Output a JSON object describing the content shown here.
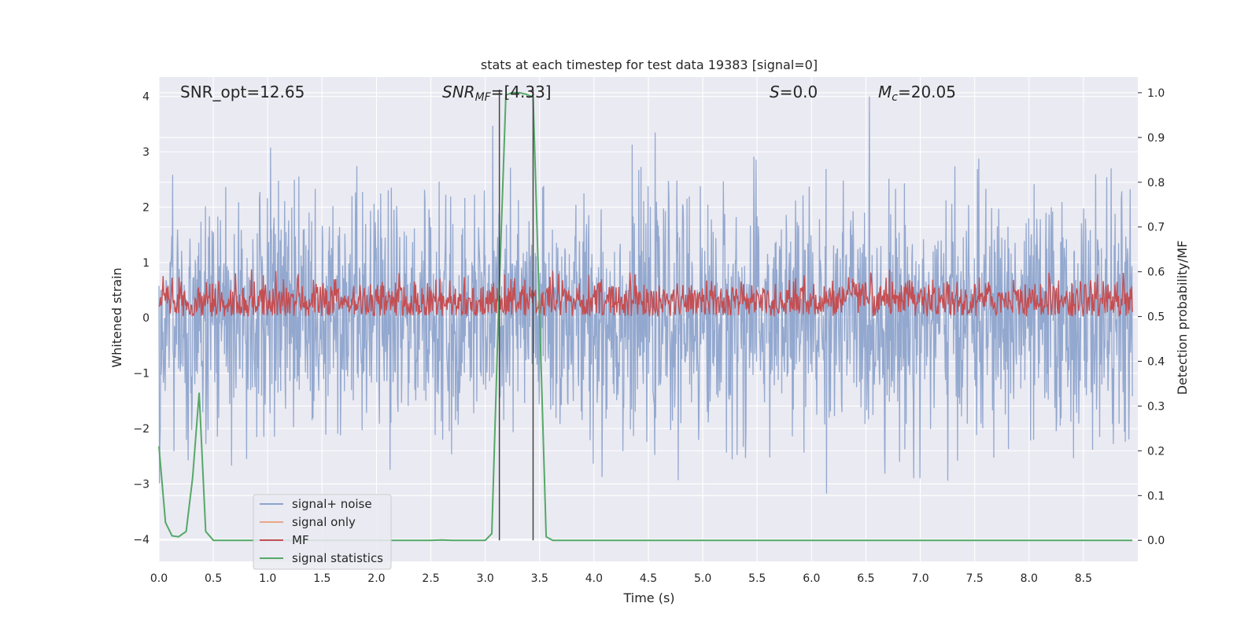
{
  "chart_data": {
    "type": "line",
    "title": "stats at each timestep for test data 19383 [signal=0]",
    "xlabel": "Time (s)",
    "ylabel": "Whitened strain",
    "y2label": "Detection probability/MF",
    "xlim": [
      0.0,
      9.0
    ],
    "ylim": [
      -4.4,
      4.35
    ],
    "y2lim": [
      -0.047,
      1.035
    ],
    "xticks": [
      "0.0",
      "0.5",
      "1.0",
      "1.5",
      "2.0",
      "2.5",
      "3.0",
      "3.5",
      "4.0",
      "4.5",
      "5.0",
      "5.5",
      "6.0",
      "6.5",
      "7.0",
      "7.5",
      "8.0",
      "8.5"
    ],
    "yticks": [
      "−4",
      "−3",
      "−2",
      "−1",
      "0",
      "1",
      "2",
      "3",
      "4"
    ],
    "y2ticks": [
      "0.0",
      "0.1",
      "0.2",
      "0.3",
      "0.4",
      "0.5",
      "0.6",
      "0.7",
      "0.8",
      "0.9",
      "1.0"
    ],
    "grid": true,
    "legend_position": "lower-left",
    "annotations": {
      "snr_opt": "SNR_opt=12.65",
      "snr_mf_main": "SNR",
      "snr_mf_sub": "MF",
      "snr_mf_rest": "=[4.33]",
      "s_main": "S",
      "s_rest": "=0.0",
      "mc_main": "M",
      "mc_sub": "c",
      "mc_rest": "=20.05"
    },
    "vertical_lines_x": [
      3.13,
      3.44
    ],
    "series": [
      {
        "name": "signal+ noise",
        "color": "#8ea4cc",
        "axis": "left",
        "description_range": [
          -3.6,
          4.0
        ]
      },
      {
        "name": "signal only",
        "color": "#e8a88a",
        "axis": "left"
      },
      {
        "name": "MF",
        "color": "#c44e52",
        "axis": "right",
        "baseline": 0.5,
        "range": [
          0.5,
          0.64
        ]
      },
      {
        "name": "signal statistics",
        "color": "#55a868",
        "axis": "right",
        "x": [
          0.0,
          0.06,
          0.12,
          0.18,
          0.25,
          0.31,
          0.37,
          0.43,
          0.5,
          0.56,
          0.62,
          1.0,
          1.5,
          2.0,
          2.5,
          2.6,
          2.7,
          3.0,
          3.06,
          3.12,
          3.19,
          3.25,
          3.31,
          3.37,
          3.44,
          3.5,
          3.56,
          3.62,
          4.0,
          5.0,
          6.0,
          7.0,
          8.0,
          8.95
        ],
        "values": [
          0.21,
          0.04,
          0.01,
          0.008,
          0.02,
          0.14,
          0.33,
          0.02,
          0.0,
          0.0,
          0.0,
          0.0,
          0.0,
          0.0,
          0.0,
          0.001,
          0.0,
          0.0,
          0.015,
          0.5,
          0.995,
          1.0,
          1.0,
          0.997,
          0.99,
          0.5,
          0.008,
          0.0,
          0.0,
          0.0,
          0.0,
          0.0,
          0.0,
          0.0
        ]
      }
    ],
    "colors": {
      "plot_bg": "#eaeaf2",
      "grid": "#ffffff",
      "vline": "#444444",
      "text": "#262626"
    }
  }
}
